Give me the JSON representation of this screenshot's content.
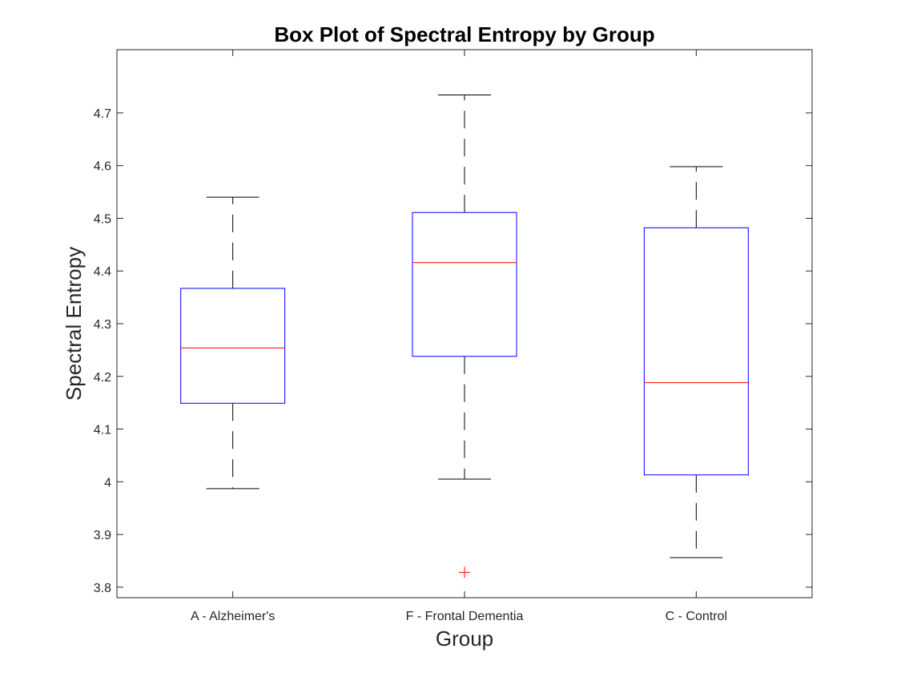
{
  "chart_data": {
    "type": "box",
    "title": "Box Plot of Spectral Entropy by Group",
    "xlabel": "Group",
    "ylabel": "Spectral Entropy",
    "ylim": [
      3.78,
      4.82
    ],
    "yticks": [
      3.8,
      3.9,
      4,
      4.1,
      4.2,
      4.3,
      4.4,
      4.5,
      4.6,
      4.7
    ],
    "ytick_labels": [
      "3.8",
      "3.9",
      "4",
      "4.1",
      "4.2",
      "4.3",
      "4.4",
      "4.5",
      "4.6",
      "4.7"
    ],
    "categories": [
      "A - Alzheimer's",
      "F - Frontal Dementia",
      "C - Control"
    ],
    "boxes": [
      {
        "name": "A - Alzheimer's",
        "whisker_low": 3.987,
        "q1": 4.149,
        "median": 4.254,
        "q3": 4.367,
        "whisker_high": 4.54,
        "outliers": []
      },
      {
        "name": "F - Frontal Dementia",
        "whisker_low": 4.005,
        "q1": 4.238,
        "median": 4.416,
        "q3": 4.511,
        "whisker_high": 4.734,
        "outliers": [
          3.828
        ]
      },
      {
        "name": "C - Control",
        "whisker_low": 3.856,
        "q1": 4.013,
        "median": 4.188,
        "q3": 4.482,
        "whisker_high": 4.598,
        "outliers": []
      }
    ],
    "colors": {
      "box": "#0000ff",
      "median": "#ff0000",
      "whisker": "#000000",
      "outlier": "#ff0000",
      "axis": "#262626"
    },
    "grid": false
  }
}
